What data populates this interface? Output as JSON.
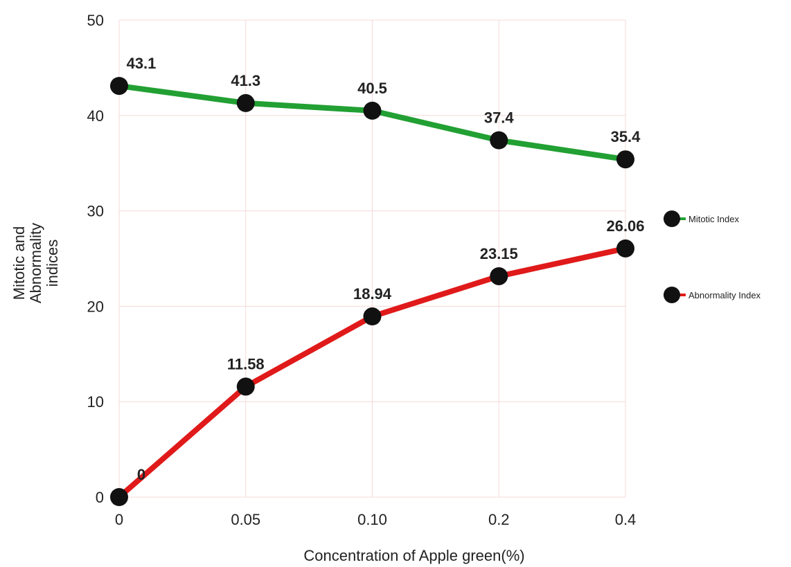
{
  "chart_data": {
    "type": "line",
    "categories": [
      "0",
      "0.05",
      "0.10",
      "0.2",
      "0.4"
    ],
    "series": [
      {
        "name": "Mitotic Index",
        "values": [
          43.1,
          41.3,
          40.5,
          37.4,
          35.4
        ],
        "labels": [
          "43.1",
          "41.3",
          "40.5",
          "37.4",
          "35.4"
        ],
        "color": "#22a033"
      },
      {
        "name": "Abnormality Index",
        "values": [
          0,
          11.58,
          18.94,
          23.15,
          26.06
        ],
        "labels": [
          "0",
          "11.58",
          "18.94",
          "23.15",
          "26.06"
        ],
        "color": "#e01a1a"
      }
    ],
    "xlabel": "Concentration of Apple green(%)",
    "ylabel_lines": [
      "Mitotic and",
      "Abnormality",
      "indices"
    ],
    "ylim": [
      0,
      50
    ],
    "yticks": [
      "0",
      "10",
      "20",
      "30",
      "40",
      "50"
    ],
    "grid": true,
    "grid_color": "#f5d8d8",
    "marker_color": "#111111",
    "legend_position": "right"
  }
}
